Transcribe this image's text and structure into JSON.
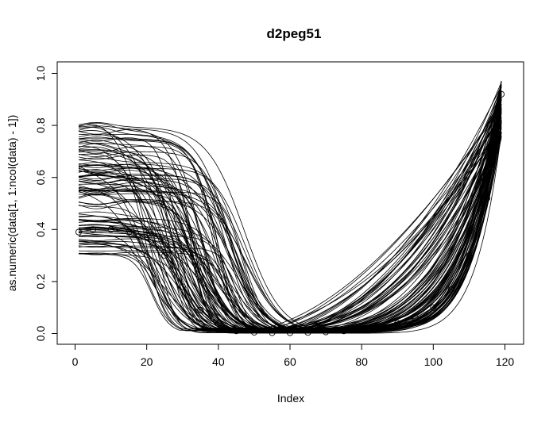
{
  "chart_data": {
    "type": "line",
    "title": "d2peg51",
    "xlabel": "Index",
    "ylabel": "as.numeric(data[1, 1:ncol(data) - 1])",
    "xlim": [
      0,
      120
    ],
    "ylim": [
      0,
      1
    ],
    "x_ticks": [
      0,
      20,
      40,
      60,
      80,
      100,
      120
    ],
    "y_ticks": [
      0.0,
      0.2,
      0.4,
      0.6,
      0.8,
      1.0
    ],
    "x_tick_labels": [
      "0",
      "20",
      "40",
      "60",
      "80",
      "100",
      "120"
    ],
    "y_tick_labels": [
      "0.0",
      "0.2",
      "0.4",
      "0.6",
      "0.8",
      "1.0"
    ],
    "grid": false,
    "box": true,
    "n_points": 119,
    "highlighted_series_markers": "open-circle",
    "series_color": "#000000",
    "highlighted_series": {
      "x": [
        1,
        5,
        10,
        15,
        20,
        25,
        30,
        35,
        40,
        45,
        50,
        55,
        60,
        65,
        70,
        75,
        80,
        85,
        90,
        95,
        100,
        105,
        110,
        115,
        119
      ],
      "y": [
        0.39,
        0.4,
        0.4,
        0.39,
        0.38,
        0.3,
        0.18,
        0.09,
        0.04,
        0.01,
        0.005,
        0.003,
        0.003,
        0.004,
        0.006,
        0.01,
        0.015,
        0.025,
        0.04,
        0.06,
        0.1,
        0.17,
        0.3,
        0.52,
        0.92
      ]
    },
    "profile_ranges": {
      "start_level_min": 0.3,
      "start_level_max": 0.8,
      "fall_midpoint_min": 18,
      "fall_midpoint_max": 48,
      "end_value_min": 0.75,
      "end_value_max": 0.975,
      "rise_shape_min": 0.6,
      "rise_shape_max": 4.0,
      "n_series": 110
    }
  }
}
